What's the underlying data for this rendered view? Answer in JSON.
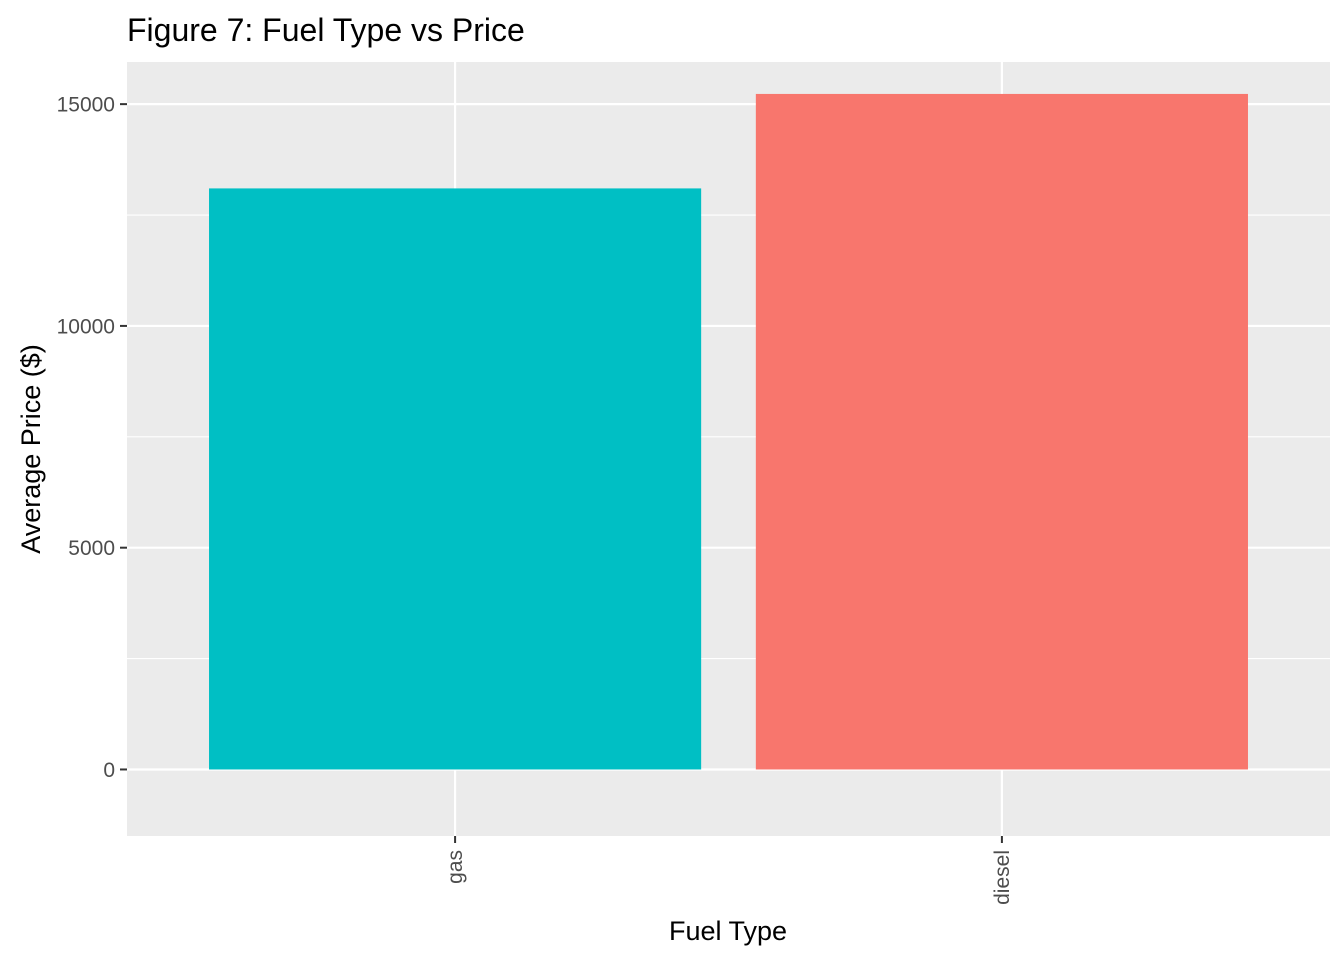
{
  "chart_data": {
    "type": "bar",
    "title": "Figure 7: Fuel Type vs Price",
    "xlabel": "Fuel Type",
    "ylabel": "Average Price ($)",
    "categories": [
      "gas",
      "diesel"
    ],
    "values": [
      13100,
      15230
    ],
    "colors": [
      "#00BFC4",
      "#F8766D"
    ],
    "ylim": [
      -1500,
      15950
    ],
    "yticks": [
      0,
      5000,
      10000,
      15000
    ],
    "ytick_labels": [
      "0",
      "5000",
      "10000",
      "15000"
    ],
    "x_tick_rotation": -90,
    "grid": true,
    "legend": "none",
    "panel_background": "#EBEBEB",
    "grid_color": "#FFFFFF"
  }
}
